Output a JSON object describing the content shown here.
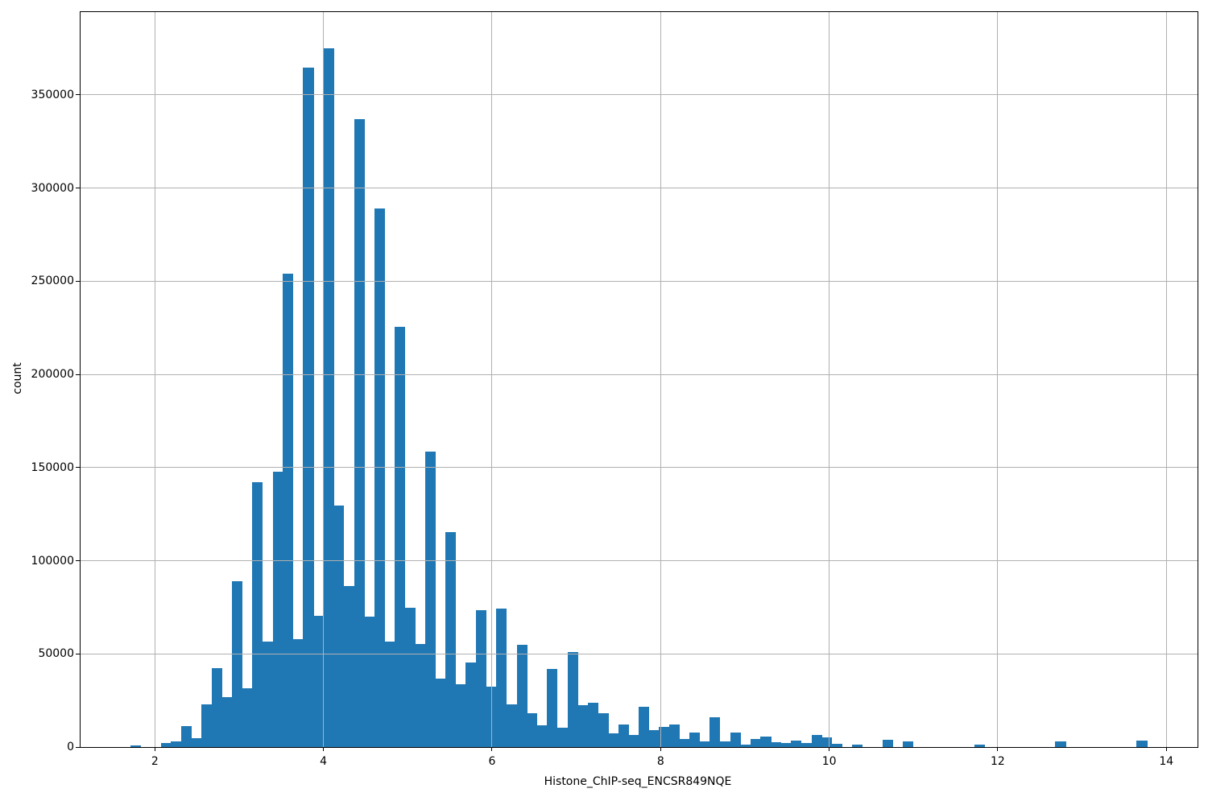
{
  "figure": {
    "background": "#ffffff"
  },
  "chart_data": {
    "type": "bar",
    "subtype": "histogram",
    "title": "",
    "xlabel": "Histone_ChIP-seq_ENCSR849NQE",
    "ylabel": "count",
    "legend": "none",
    "grid": true,
    "grid_on_top_of_bars": true,
    "bar_color": "#1f77b4",
    "grid_color": "#b0b0b0",
    "spine_color": "#000000",
    "text_color": "#000000",
    "xlim": [
      1.118,
      14.37
    ],
    "ylim": [
      0,
      394500
    ],
    "x_ticks": [
      2,
      4,
      6,
      8,
      10,
      12,
      14
    ],
    "x_tick_labels": [
      "2",
      "4",
      "6",
      "8",
      "10",
      "12",
      "14"
    ],
    "y_ticks": [
      0,
      50000,
      100000,
      150000,
      200000,
      250000,
      300000,
      350000
    ],
    "y_tick_labels": [
      "0",
      "50000",
      "100000",
      "150000",
      "200000",
      "250000",
      "300000",
      "350000"
    ],
    "bin_start": 1.709,
    "bin_width": 0.1206,
    "counts": [
      1000,
      0,
      0,
      2300,
      3000,
      11200,
      4800,
      22800,
      42500,
      27000,
      89200,
      31500,
      142300,
      56500,
      147800,
      254200,
      57700,
      364500,
      70600,
      375200,
      129700,
      86600,
      337100,
      69900,
      288900,
      56400,
      225400,
      74800,
      55100,
      158500,
      36700,
      115300,
      33800,
      45500,
      73600,
      32500,
      74300,
      22700,
      54800,
      18300,
      11500,
      41800,
      10400,
      50800,
      22400,
      23800,
      18000,
      7200,
      12300,
      6500,
      21600,
      9100,
      10800,
      12300,
      4300,
      7900,
      2900,
      16200,
      2900,
      7900,
      1400,
      4400,
      5800,
      2600,
      2000,
      3600,
      2200,
      6500,
      5000,
      1900,
      0,
      1400,
      0,
      0,
      4000,
      0,
      3200,
      0,
      0,
      0,
      0,
      0,
      0,
      1200,
      0,
      0,
      0,
      0,
      0,
      0,
      0,
      3200,
      0,
      0,
      0,
      0,
      0,
      0,
      0,
      3600
    ]
  }
}
